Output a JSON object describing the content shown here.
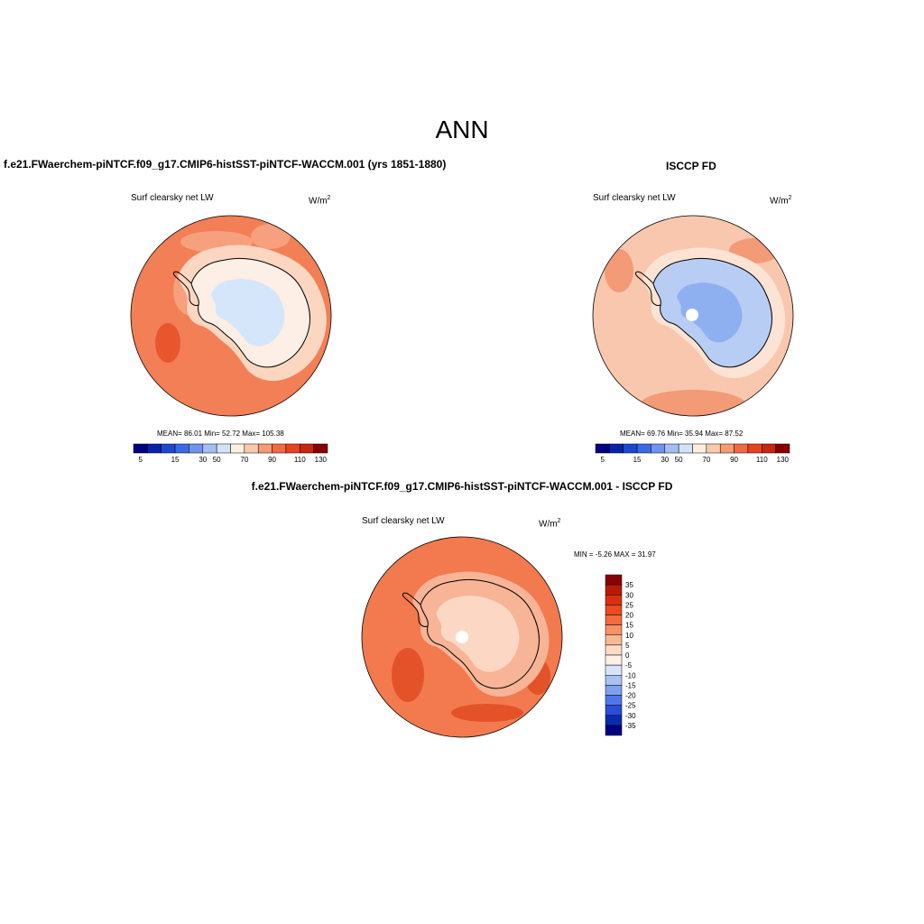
{
  "figure": {
    "title": "ANN"
  },
  "panels": [
    {
      "id": "model",
      "title": "f.e21.FWaerchem-piNTCF.f09_g17.CMIP6-histSST-piNTCF-WACCM.001 (yrs 1851-1880)",
      "variable": "Surf clearsky net LW",
      "units_base": "W/m",
      "units_exp": "2",
      "stats": "MEAN=  86.01  Min=  52.72  Max= 105.38",
      "colorbar": {
        "orientation": "horizontal",
        "tick_labels": [
          "5",
          "15",
          "30",
          "50",
          "70",
          "90",
          "110",
          "130"
        ],
        "colors": [
          "#00007f",
          "#0a22a8",
          "#1c48d0",
          "#3a6ae6",
          "#6f93ee",
          "#a5bdf2",
          "#d2e3f8",
          "#fdefe0",
          "#f9c9ad",
          "#f59a74",
          "#f26a42",
          "#e8431e",
          "#c92610",
          "#8a0000"
        ]
      },
      "map_colors": {
        "ocean": "#f27f55",
        "ocean_dark": "#e8562e",
        "ocean_light": "#f6a07e",
        "coast": "#fbd6c0",
        "inner": "#fdefe5",
        "ice": "#d6e6fa"
      }
    },
    {
      "id": "obs",
      "title": "ISCCP FD",
      "variable": "Surf clearsky net LW",
      "units_base": "W/m",
      "units_exp": "2",
      "stats": "MEAN=  69.76  Min=  35.94  Max=  87.52",
      "colorbar": {
        "orientation": "horizontal",
        "tick_labels": [
          "5",
          "15",
          "30",
          "50",
          "70",
          "90",
          "110",
          "130"
        ],
        "colors": [
          "#00007f",
          "#0a22a8",
          "#1c48d0",
          "#3a6ae6",
          "#6f93ee",
          "#a5bdf2",
          "#d2e3f8",
          "#fdefe0",
          "#f9c9ad",
          "#f59a74",
          "#f26a42",
          "#e8431e",
          "#c92610",
          "#8a0000"
        ]
      },
      "map_colors": {
        "ocean": "#f9c7ad",
        "ocean_dark": "#f39a76",
        "coast": "#fde3d3",
        "ice": "#b8cdf4",
        "ice_dark": "#8fb0f0",
        "pole": "#ffffff"
      }
    },
    {
      "id": "diff",
      "title": "f.e21.FWaerchem-piNTCF.f09_g17.CMIP6-histSST-piNTCF-WACCM.001 - ISCCP FD",
      "variable": "Surf clearsky net LW",
      "units_base": "W/m",
      "units_exp": "2",
      "stats": "MIN =  -5.26 MAX =  31.97",
      "colorbar": {
        "orientation": "vertical",
        "tick_labels": [
          "35",
          "30",
          "25",
          "20",
          "15",
          "10",
          "5",
          "0",
          "-5",
          "-10",
          "-15",
          "-20",
          "-25",
          "-30",
          "-35"
        ],
        "colors": [
          "#8a0000",
          "#b81a08",
          "#d8300f",
          "#ec4a20",
          "#f36b3f",
          "#f69366",
          "#f9b896",
          "#fcdcc6",
          "#fdf0e6",
          "#d6e5f8",
          "#a9c2f3",
          "#7ea0ee",
          "#5077e8",
          "#2a4fd6",
          "#0c2aae",
          "#000080"
        ]
      },
      "map_colors": {
        "ocean": "#f27a4e",
        "ocean_dark": "#e4522a",
        "land": "#f7b496",
        "land_light": "#fcd8c4",
        "pole": "#ffffff"
      }
    }
  ]
}
